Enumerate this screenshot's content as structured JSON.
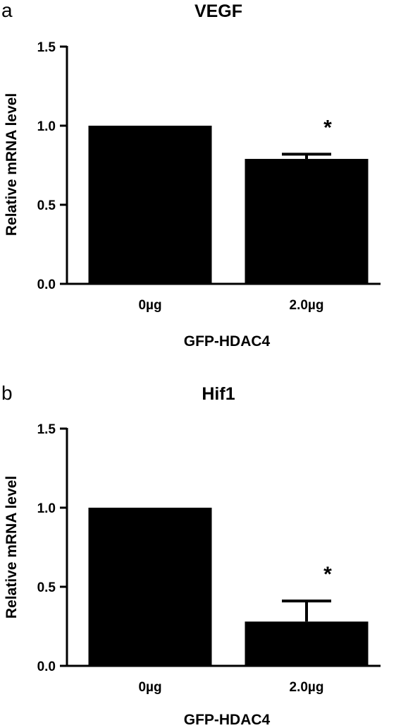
{
  "chart_data": [
    {
      "type": "bar",
      "panel": "a",
      "title": "VEGF",
      "xlabel": "GFP-HDAC4",
      "ylabel": "Relative mRNA level",
      "categories": [
        "0µg",
        "2.0µg"
      ],
      "values": [
        1.0,
        0.79
      ],
      "error": [
        0,
        0.03
      ],
      "annotations": [
        "",
        "*"
      ],
      "ylim": [
        0,
        1.5
      ],
      "yticks": [
        "0.0",
        "0.5",
        "1.0",
        "1.5"
      ],
      "grid": false,
      "legend": "none"
    },
    {
      "type": "bar",
      "panel": "b",
      "title": "Hif1",
      "xlabel": "GFP-HDAC4",
      "ylabel": "Relative mRNA level",
      "categories": [
        "0µg",
        "2.0µg"
      ],
      "values": [
        1.0,
        0.28
      ],
      "error": [
        0,
        0.13
      ],
      "annotations": [
        "",
        "*"
      ],
      "ylim": [
        0,
        1.5
      ],
      "yticks": [
        "0.0",
        "0.5",
        "1.0",
        "1.5"
      ],
      "grid": false,
      "legend": "none"
    }
  ]
}
